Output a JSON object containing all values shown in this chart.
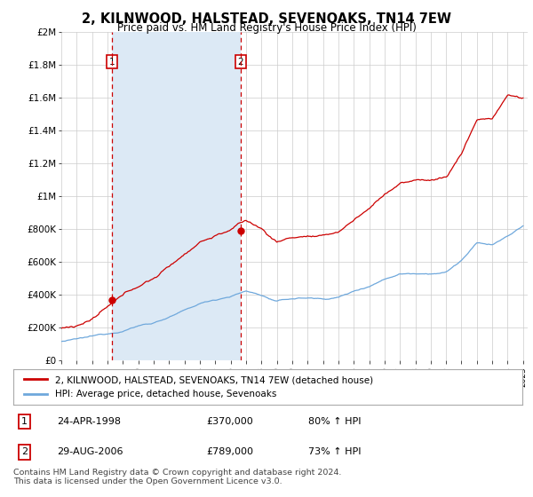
{
  "title": "2, KILNWOOD, HALSTEAD, SEVENOAKS, TN14 7EW",
  "subtitle": "Price paid vs. HM Land Registry's House Price Index (HPI)",
  "legend_label_red": "2, KILNWOOD, HALSTEAD, SEVENOAKS, TN14 7EW (detached house)",
  "legend_label_blue": "HPI: Average price, detached house, Sevenoaks",
  "sale1_date": "24-APR-1998",
  "sale1_price": 370000,
  "sale1_pct": "80% ↑ HPI",
  "sale1_year": 1998.29,
  "sale2_date": "29-AUG-2006",
  "sale2_price": 789000,
  "sale2_pct": "73% ↑ HPI",
  "sale2_year": 2006.66,
  "footer": "Contains HM Land Registry data © Crown copyright and database right 2024.\nThis data is licensed under the Open Government Licence v3.0.",
  "xlim_min": 1995.0,
  "xlim_max": 2025.3,
  "ylim_min": 0,
  "ylim_max": 2000000,
  "red_color": "#cc0000",
  "blue_color": "#6fa8dc",
  "shade_color": "#dce9f5",
  "background_color": "#ffffff",
  "grid_color": "#cccccc"
}
